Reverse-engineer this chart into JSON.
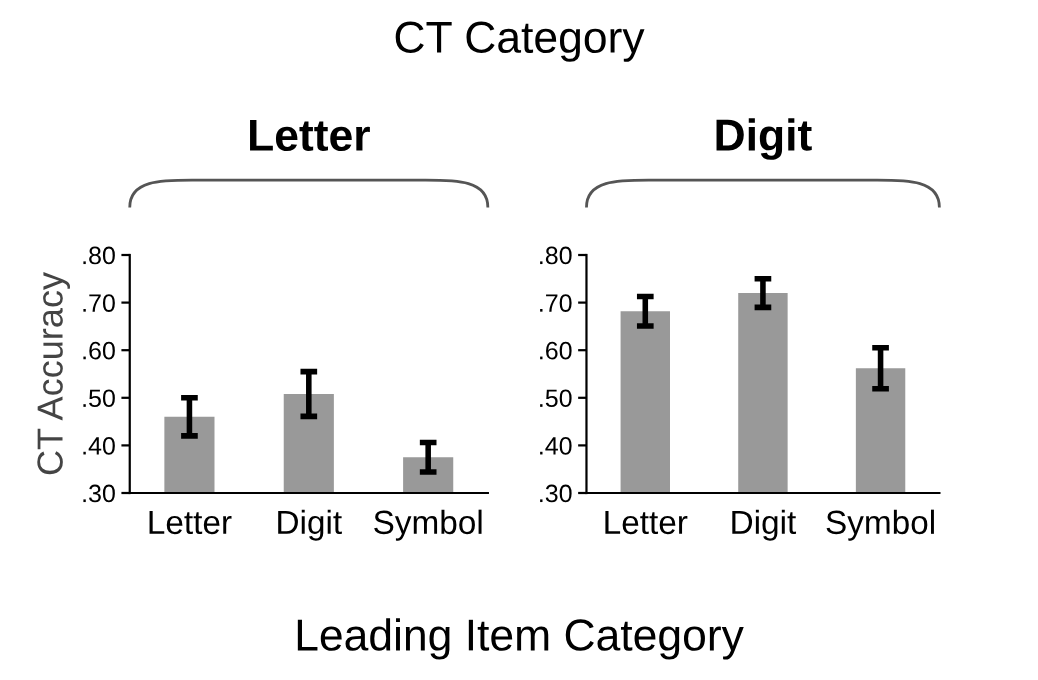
{
  "chart_data": [
    {
      "type": "bar",
      "title": "Letter",
      "ylabel": "CT Accuracy",
      "annotations": [
        "CT Category",
        "Leading Item Category"
      ],
      "categories": [
        "Letter",
        "Digit",
        "Symbol"
      ],
      "series": [
        {
          "color": "#999999",
          "values": [
            0.46,
            0.508,
            0.375
          ],
          "errors": [
            0.04,
            0.047,
            0.031
          ]
        }
      ],
      "ylim": [
        0.3,
        0.8
      ],
      "yticks": [
        {
          "value": 0.3,
          "label": ".30"
        },
        {
          "value": 0.4,
          "label": ".40"
        },
        {
          "value": 0.5,
          "label": ".50"
        },
        {
          "value": 0.6,
          "label": ".60"
        },
        {
          "value": 0.7,
          "label": ".70"
        },
        {
          "value": 0.8,
          "label": ".80"
        }
      ],
      "grid": false,
      "legend": false
    },
    {
      "type": "bar",
      "title": "Digit",
      "categories": [
        "Letter",
        "Digit",
        "Symbol"
      ],
      "series": [
        {
          "color": "#999999",
          "values": [
            0.682,
            0.72,
            0.562
          ],
          "errors": [
            0.031,
            0.03,
            0.043
          ]
        }
      ],
      "ylim": [
        0.3,
        0.8
      ],
      "yticks": [
        {
          "value": 0.3,
          "label": ".30"
        },
        {
          "value": 0.4,
          "label": ".40"
        },
        {
          "value": 0.5,
          "label": ".50"
        },
        {
          "value": 0.6,
          "label": ".60"
        },
        {
          "value": 0.7,
          "label": ".70"
        },
        {
          "value": 0.8,
          "label": ".80"
        }
      ],
      "grid": false,
      "legend": false
    }
  ]
}
